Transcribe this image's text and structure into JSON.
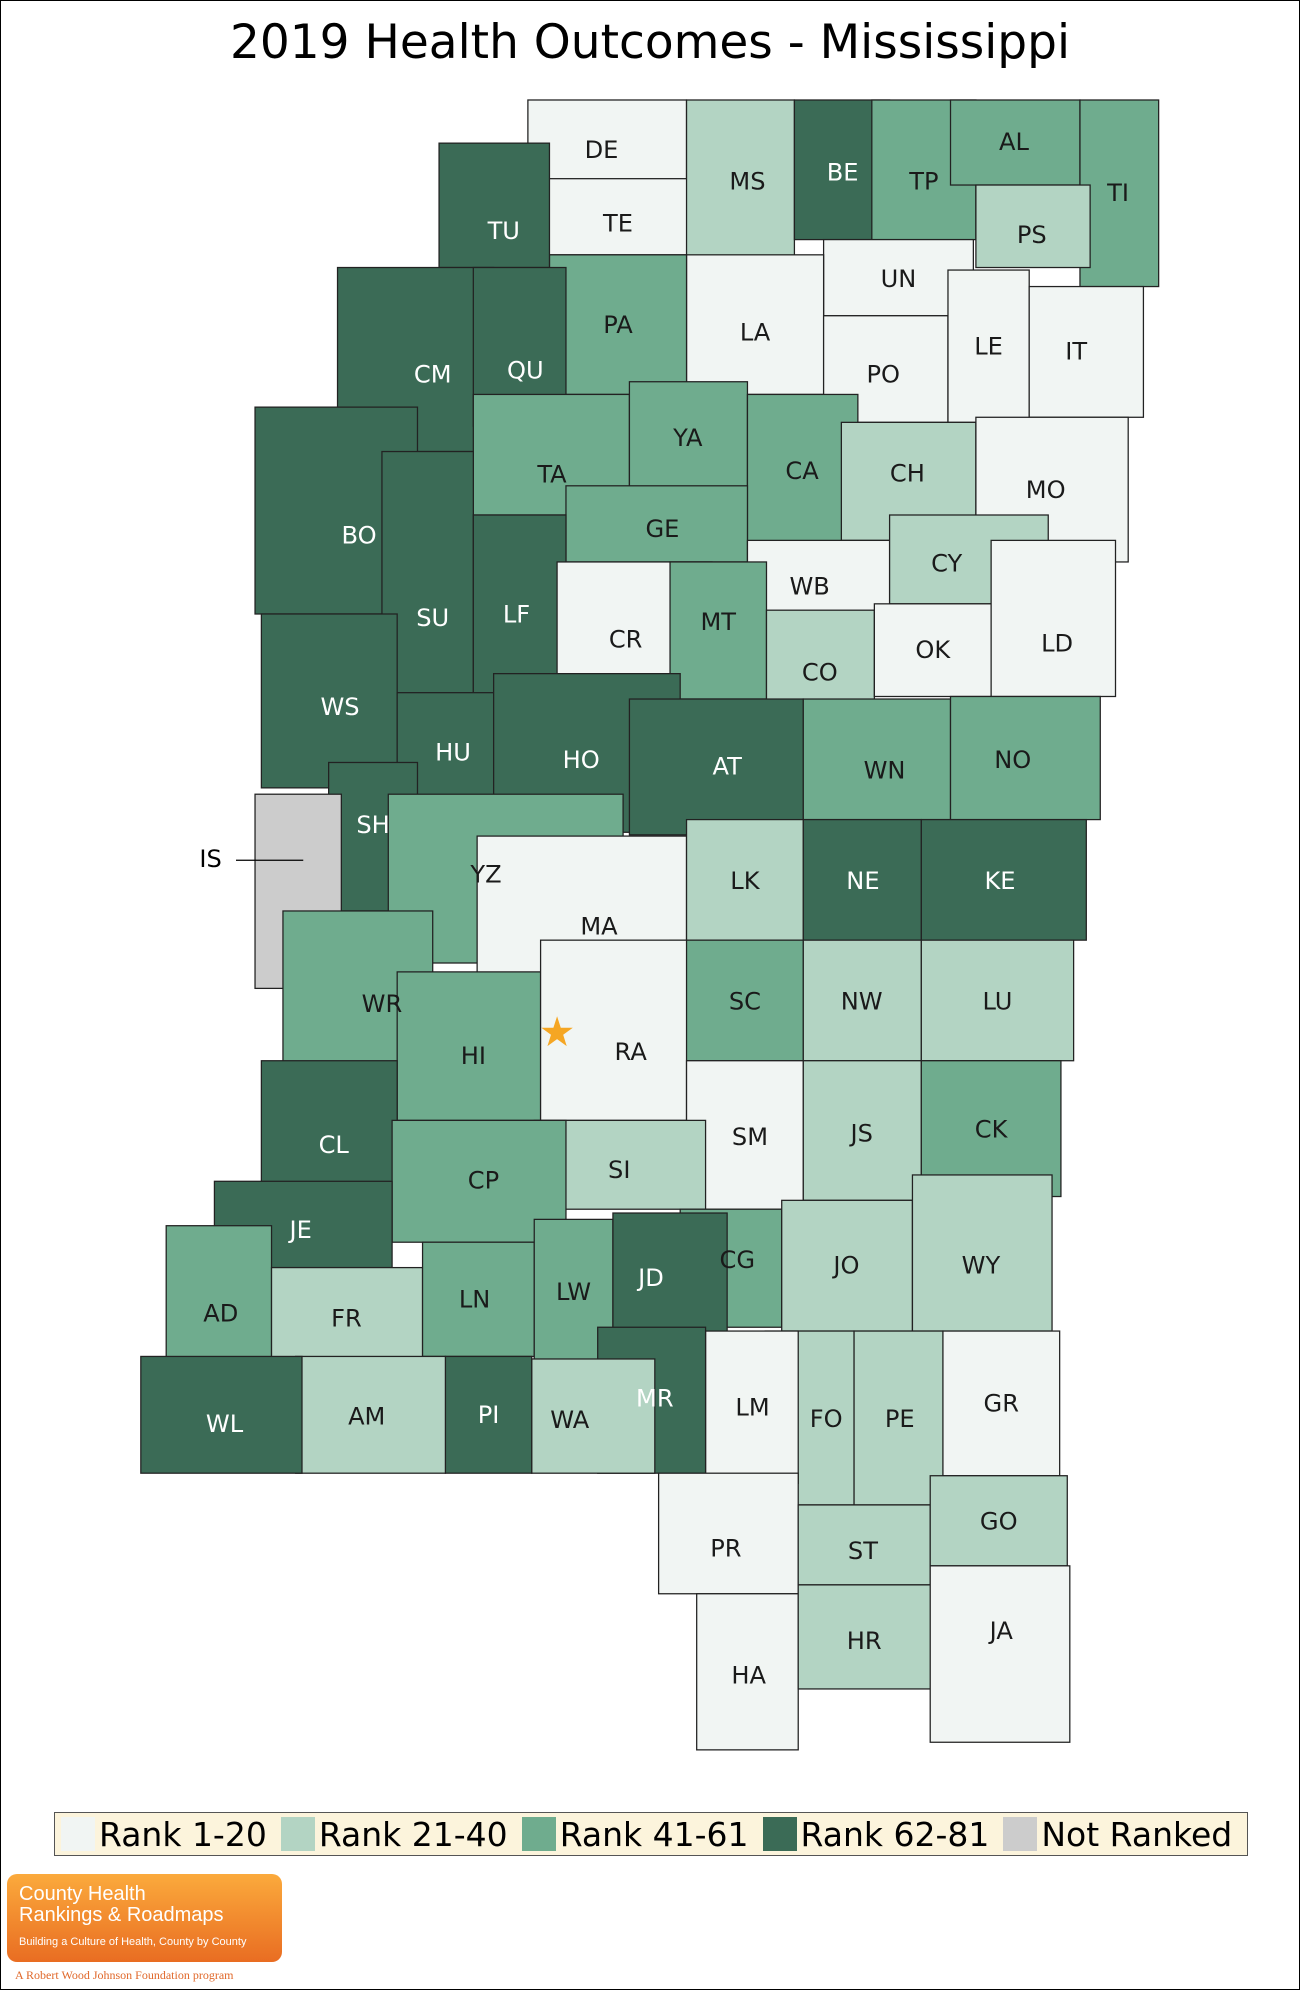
{
  "title": "2019 Health Outcomes - Mississippi",
  "colors": {
    "rank_1_20": "#f1f5f3",
    "rank_21_40": "#b3d4c3",
    "rank_41_61": "#6fac8e",
    "rank_62_81": "#3b6b56",
    "not_ranked": "#cccccc",
    "highlight_star": "#f5a623"
  },
  "legend": [
    {
      "label": "Rank 1-20",
      "group": 1
    },
    {
      "label": "Rank 21-40",
      "group": 2
    },
    {
      "label": "Rank 41-61",
      "group": 3
    },
    {
      "label": "Rank 62-81",
      "group": 4
    },
    {
      "label": "Not Ranked",
      "group": 0
    }
  ],
  "counties": [
    {
      "abbr": "DE",
      "group": 1
    },
    {
      "abbr": "TE",
      "group": 1
    },
    {
      "abbr": "MS",
      "group": 2
    },
    {
      "abbr": "BE",
      "group": 4
    },
    {
      "abbr": "TP",
      "group": 3
    },
    {
      "abbr": "AL",
      "group": 3
    },
    {
      "abbr": "TI",
      "group": 3
    },
    {
      "abbr": "PS",
      "group": 2
    },
    {
      "abbr": "UN",
      "group": 1
    },
    {
      "abbr": "LA",
      "group": 1
    },
    {
      "abbr": "PA",
      "group": 3
    },
    {
      "abbr": "TU",
      "group": 4
    },
    {
      "abbr": "CM",
      "group": 4
    },
    {
      "abbr": "QU",
      "group": 4
    },
    {
      "abbr": "PO",
      "group": 1
    },
    {
      "abbr": "LE",
      "group": 1
    },
    {
      "abbr": "IT",
      "group": 1
    },
    {
      "abbr": "BO",
      "group": 4
    },
    {
      "abbr": "TA",
      "group": 3
    },
    {
      "abbr": "YA",
      "group": 3
    },
    {
      "abbr": "CA",
      "group": 3
    },
    {
      "abbr": "CH",
      "group": 2
    },
    {
      "abbr": "MO",
      "group": 1
    },
    {
      "abbr": "GE",
      "group": 3
    },
    {
      "abbr": "SU",
      "group": 4
    },
    {
      "abbr": "LF",
      "group": 4
    },
    {
      "abbr": "WB",
      "group": 1
    },
    {
      "abbr": "CY",
      "group": 2
    },
    {
      "abbr": "CR",
      "group": 1
    },
    {
      "abbr": "MT",
      "group": 3
    },
    {
      "abbr": "CO",
      "group": 2
    },
    {
      "abbr": "OK",
      "group": 1
    },
    {
      "abbr": "LD",
      "group": 1
    },
    {
      "abbr": "WS",
      "group": 4
    },
    {
      "abbr": "HU",
      "group": 4
    },
    {
      "abbr": "HO",
      "group": 4
    },
    {
      "abbr": "AT",
      "group": 4
    },
    {
      "abbr": "WN",
      "group": 3
    },
    {
      "abbr": "NO",
      "group": 3
    },
    {
      "abbr": "SH",
      "group": 4
    },
    {
      "abbr": "IS",
      "group": 0
    },
    {
      "abbr": "YZ",
      "group": 3
    },
    {
      "abbr": "MA",
      "group": 1
    },
    {
      "abbr": "LK",
      "group": 2
    },
    {
      "abbr": "NE",
      "group": 4
    },
    {
      "abbr": "KE",
      "group": 4
    },
    {
      "abbr": "WR",
      "group": 3
    },
    {
      "abbr": "SC",
      "group": 3
    },
    {
      "abbr": "NW",
      "group": 2
    },
    {
      "abbr": "LU",
      "group": 2
    },
    {
      "abbr": "HI",
      "group": 3
    },
    {
      "abbr": "RA",
      "group": 1
    },
    {
      "abbr": "SM",
      "group": 1
    },
    {
      "abbr": "JS",
      "group": 2
    },
    {
      "abbr": "CK",
      "group": 3
    },
    {
      "abbr": "CL",
      "group": 4
    },
    {
      "abbr": "SI",
      "group": 2
    },
    {
      "abbr": "CP",
      "group": 3
    },
    {
      "abbr": "JE",
      "group": 4
    },
    {
      "abbr": "CG",
      "group": 3
    },
    {
      "abbr": "JO",
      "group": 2
    },
    {
      "abbr": "WY",
      "group": 2
    },
    {
      "abbr": "AD",
      "group": 3
    },
    {
      "abbr": "FR",
      "group": 2
    },
    {
      "abbr": "LN",
      "group": 3
    },
    {
      "abbr": "LW",
      "group": 3
    },
    {
      "abbr": "JD",
      "group": 4
    },
    {
      "abbr": "GR",
      "group": 1
    },
    {
      "abbr": "FO",
      "group": 2
    },
    {
      "abbr": "PE",
      "group": 2
    },
    {
      "abbr": "LM",
      "group": 1
    },
    {
      "abbr": "MR",
      "group": 4
    },
    {
      "abbr": "WA",
      "group": 2
    },
    {
      "abbr": "PI",
      "group": 4
    },
    {
      "abbr": "AM",
      "group": 2
    },
    {
      "abbr": "WL",
      "group": 4
    },
    {
      "abbr": "PR",
      "group": 1
    },
    {
      "abbr": "ST",
      "group": 2
    },
    {
      "abbr": "GO",
      "group": 2
    },
    {
      "abbr": "HA",
      "group": 1
    },
    {
      "abbr": "HR",
      "group": 2
    },
    {
      "abbr": "JA",
      "group": 1
    }
  ],
  "logo": {
    "line1": "County Health",
    "line2": "Rankings & Roadmaps",
    "tagline": "Building a Culture of Health, County by County",
    "footer": "A Robert Wood Johnson Foundation program"
  }
}
